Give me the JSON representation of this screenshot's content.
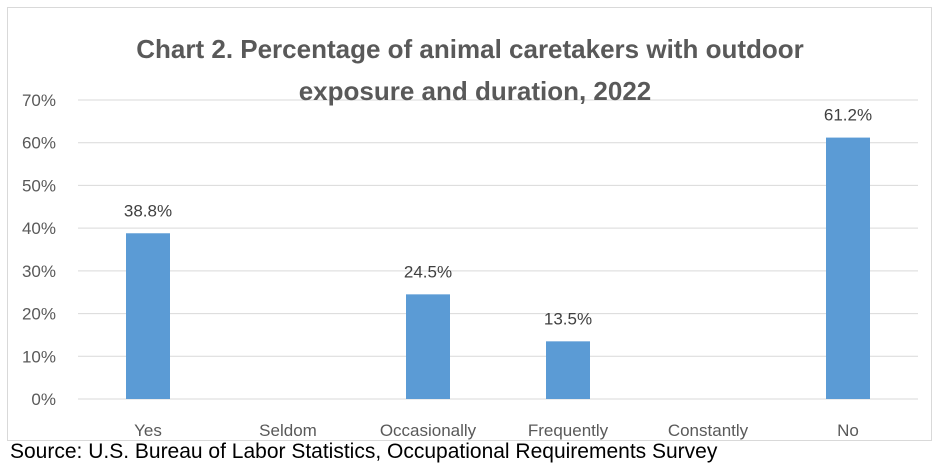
{
  "chart_data": {
    "type": "bar",
    "title_lines": [
      "Chart 2. Percentage of animal caretakers with outdoor",
      "exposure and duration, 2022"
    ],
    "categories": [
      "Yes",
      "Seldom",
      "Occasionally",
      "Frequently",
      "Constantly",
      "No"
    ],
    "values": [
      38.8,
      null,
      24.5,
      13.5,
      null,
      61.2
    ],
    "data_labels": [
      "38.8%",
      "",
      "24.5%",
      "13.5%",
      "",
      "61.2%"
    ],
    "ylim": [
      0,
      70
    ],
    "yticks": [
      "0%",
      "10%",
      "20%",
      "30%",
      "40%",
      "50%",
      "60%",
      "70%"
    ],
    "grid": true,
    "legend": "none",
    "bar_color": "#5b9bd5",
    "grid_color": "#d9d9d9"
  },
  "source": "Source: U.S. Bureau of Labor Statistics, Occupational Requirements Survey"
}
